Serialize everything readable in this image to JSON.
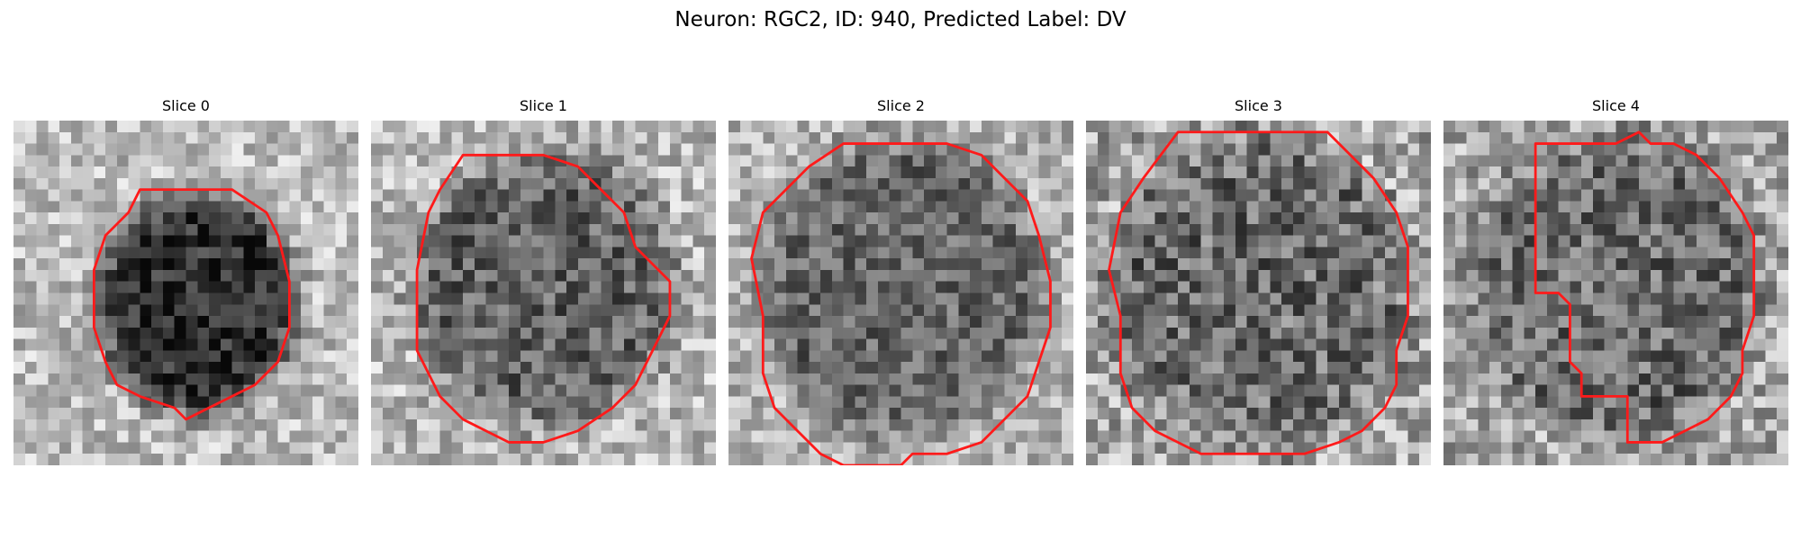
{
  "figure": {
    "title": "Neuron: RGC2, ID: 940, Predicted Label: DV"
  },
  "colors": {
    "contour": "#ff1a1a",
    "background": "#ffffff",
    "text": "#000000"
  },
  "slices": [
    {
      "title": "Slice 0"
    },
    {
      "title": "Slice 1"
    },
    {
      "title": "Slice 2"
    },
    {
      "title": "Slice 3"
    },
    {
      "title": "Slice 4"
    }
  ]
}
